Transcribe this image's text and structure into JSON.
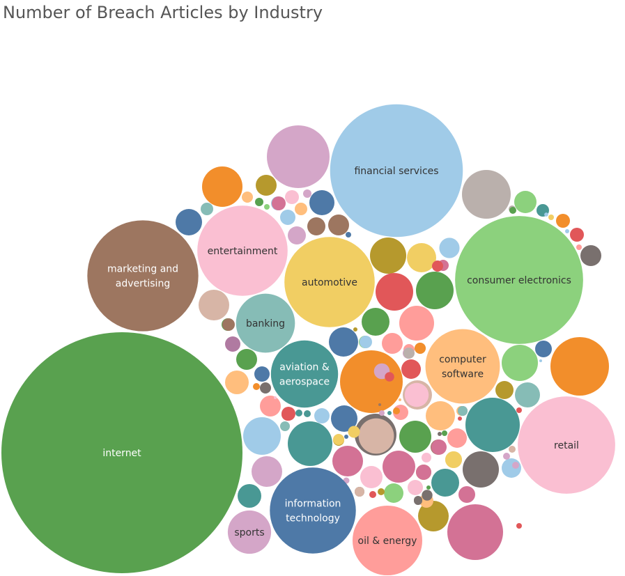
{
  "chart_data": {
    "type": "packed-bubble",
    "title": "Number of Breach Articles by Industry",
    "labeled_series": [
      {
        "name": "internet",
        "lines": [
          "internet"
        ],
        "value": 100,
        "color": "#59a14f",
        "text_color": "#ffffff"
      },
      {
        "name": "financial services",
        "lines": [
          "financial services"
        ],
        "value": 30.6,
        "color": "#a0cbe8",
        "text_color": "#333333"
      },
      {
        "name": "consumer electronics",
        "lines": [
          "consumer electronics"
        ],
        "value": 28.5,
        "color": "#8cd17d",
        "text_color": "#333333"
      },
      {
        "name": "marketing and advertising",
        "lines": [
          "marketing and",
          "advertising"
        ],
        "value": 21.5,
        "color": "#9d7660",
        "text_color": "#ffffff"
      },
      {
        "name": "retail",
        "lines": [
          "retail"
        ],
        "value": 16.6,
        "color": "#fabfd2",
        "text_color": "#333333"
      },
      {
        "name": "automotive",
        "lines": [
          "automotive"
        ],
        "value": 14.3,
        "color": "#f1ce63",
        "text_color": "#333333"
      },
      {
        "name": "entertainment",
        "lines": [
          "entertainment"
        ],
        "value": 14.3,
        "color": "#fabfd2",
        "text_color": "#333333"
      },
      {
        "name": "computer software",
        "lines": [
          "computer",
          "software"
        ],
        "value": 9.8,
        "color": "#ffbe7d",
        "text_color": "#333333"
      },
      {
        "name": "information technology",
        "lines": [
          "information",
          "technology"
        ],
        "value": 13.0,
        "color": "#4e79a7",
        "text_color": "#ffffff"
      },
      {
        "name": "oil & energy",
        "lines": [
          "oil & energy"
        ],
        "value": 8.6,
        "color": "#ff9d9a",
        "text_color": "#333333"
      },
      {
        "name": "aviation & aerospace",
        "lines": [
          "aviation &",
          "aerospace"
        ],
        "value": 8.0,
        "color": "#499894",
        "text_color": "#ffffff"
      },
      {
        "name": "banking",
        "lines": [
          "banking"
        ],
        "value": 6.2,
        "color": "#86bcb6",
        "text_color": "#333333"
      },
      {
        "name": "sports",
        "lines": [
          "sports"
        ],
        "value": 3.4,
        "color": "#d4a6c8",
        "text_color": "#333333"
      }
    ],
    "unlabeled_bubbles": [
      {
        "value": 6.8,
        "color": "#d4a6c8"
      },
      {
        "value": 5.7,
        "color": "#bab0ac"
      },
      {
        "value": 7.0,
        "color": "#f28e2b"
      },
      {
        "value": 7.0,
        "color": "#f28e2b"
      },
      {
        "value": 6.5,
        "color": "#499894"
      },
      {
        "value": 3.1,
        "color": "#f28e2b"
      },
      {
        "value": 3.2,
        "color": "#d37295"
      },
      {
        "value": 2.8,
        "color": "#499894"
      },
      {
        "value": 2.6,
        "color": "#a0cbe8"
      },
      {
        "value": 2.6,
        "color": "#79706e"
      },
      {
        "value": 2.6,
        "color": "#d4a6c8"
      },
      {
        "value": 2.3,
        "color": "#59a14f"
      },
      {
        "value": 2.3,
        "color": "#b6992d"
      },
      {
        "value": 2.4,
        "color": "#ff9d9a"
      },
      {
        "value": 2.3,
        "color": "#e15759"
      },
      {
        "value": 2.0,
        "color": "#f1ce63"
      },
      {
        "value": 2.1,
        "color": "#d7b5a6"
      },
      {
        "value": 2.1,
        "color": "#9d7660"
      },
      {
        "value": 2.3,
        "color": "#d7b5a6"
      },
      {
        "value": 1.5,
        "color": "#4e79a7"
      },
      {
        "value": 1.4,
        "color": "#4e79a7"
      },
      {
        "value": 1.4,
        "color": "#4e79a7"
      },
      {
        "value": 1.4,
        "color": "#4e79a7"
      },
      {
        "value": 2.0,
        "color": "#86bcb6"
      },
      {
        "value": 1.8,
        "color": "#59a14f"
      },
      {
        "value": 1.9,
        "color": "#d7b5a6"
      },
      {
        "value": 1.9,
        "color": "#a0cbe8"
      },
      {
        "value": 1.6,
        "color": "#d37295"
      },
      {
        "value": 1.4,
        "color": "#59a14f"
      },
      {
        "value": 1.5,
        "color": "#f1ce63"
      },
      {
        "value": 1.6,
        "color": "#ffbe7d"
      },
      {
        "value": 1.8,
        "color": "#d37295"
      },
      {
        "value": 1.3,
        "color": "#ff9d9a"
      },
      {
        "value": 1.8,
        "color": "#79706e"
      },
      {
        "value": 1.6,
        "color": "#d37295"
      },
      {
        "value": 1.4,
        "color": "#499894"
      },
      {
        "value": 1.5,
        "color": "#499894"
      },
      {
        "value": 1.2,
        "color": "#8cd17d"
      },
      {
        "value": 1.2,
        "color": "#ffbe7d"
      },
      {
        "value": 1.1,
        "color": "#fabfd2"
      },
      {
        "value": 1.2,
        "color": "#fabfd2"
      },
      {
        "value": 1.2,
        "color": "#ffbe7d"
      },
      {
        "value": 1.1,
        "color": "#79706e"
      },
      {
        "value": 1.1,
        "color": "#fabfd2"
      },
      {
        "value": 1.1,
        "color": "#4e79a7"
      },
      {
        "value": 1.0,
        "color": "#ffbe7d"
      },
      {
        "value": 1.2,
        "color": "#a0cbe8"
      },
      {
        "value": 1.0,
        "color": "#9d7660"
      },
      {
        "value": 1.0,
        "color": "#b6992d"
      },
      {
        "value": 1.0,
        "color": "#8cd17d"
      },
      {
        "value": 1.0,
        "color": "#d4a6c8"
      },
      {
        "value": 0.9,
        "color": "#f1ce63"
      },
      {
        "value": 0.9,
        "color": "#b6992d"
      },
      {
        "value": 0.8,
        "color": "#ff9d9a"
      },
      {
        "value": 0.8,
        "color": "#a0cbe8"
      },
      {
        "value": 0.8,
        "color": "#86bcb6"
      },
      {
        "value": 0.7,
        "color": "#d37295"
      },
      {
        "value": 0.6,
        "color": "#e15759"
      },
      {
        "value": 0.6,
        "color": "#59a14f"
      },
      {
        "value": 0.55,
        "color": "#e15759"
      },
      {
        "value": 0.5,
        "color": "#e15759"
      },
      {
        "value": 0.5,
        "color": "#d37295"
      },
      {
        "value": 0.5,
        "color": "#d7b5a6"
      },
      {
        "value": 0.5,
        "color": "#d4a6c8"
      },
      {
        "value": 0.45,
        "color": "#ff9d9a"
      },
      {
        "value": 0.45,
        "color": "#a0cbe8"
      },
      {
        "value": 0.4,
        "color": "#b6992d"
      },
      {
        "value": 0.4,
        "color": "#ffbe7d"
      },
      {
        "value": 0.4,
        "color": "#f28e2b"
      },
      {
        "value": 0.4,
        "color": "#8cd17d"
      },
      {
        "value": 0.4,
        "color": "#ff9d9a"
      },
      {
        "value": 0.35,
        "color": "#bab0ac"
      },
      {
        "value": 0.35,
        "color": "#d4a6c8"
      },
      {
        "value": 0.35,
        "color": "#499894"
      },
      {
        "value": 0.3,
        "color": "#79706e"
      },
      {
        "value": 0.3,
        "color": "#f1ce63"
      },
      {
        "value": 0.3,
        "color": "#b6992d"
      },
      {
        "value": 0.25,
        "color": "#79706e"
      },
      {
        "value": 0.25,
        "color": "#fabfd2"
      },
      {
        "value": 0.2,
        "color": "#e15759"
      },
      {
        "value": 0.2,
        "color": "#9d7660"
      },
      {
        "value": 0.2,
        "color": "#59a14f"
      },
      {
        "value": 0.15,
        "color": "#4e79a7"
      },
      {
        "value": 0.1,
        "color": "#d4a6c8"
      },
      {
        "value": 0.1,
        "color": "#b6992d"
      },
      {
        "value": 0.1,
        "color": "#8cd17d"
      },
      {
        "value": 0.1,
        "color": "#79706e"
      },
      {
        "value": 0.1,
        "color": "#bab0ac"
      },
      {
        "value": 0.1,
        "color": "#79706e"
      },
      {
        "value": 0.05,
        "color": "#a0cbe8"
      }
    ]
  }
}
